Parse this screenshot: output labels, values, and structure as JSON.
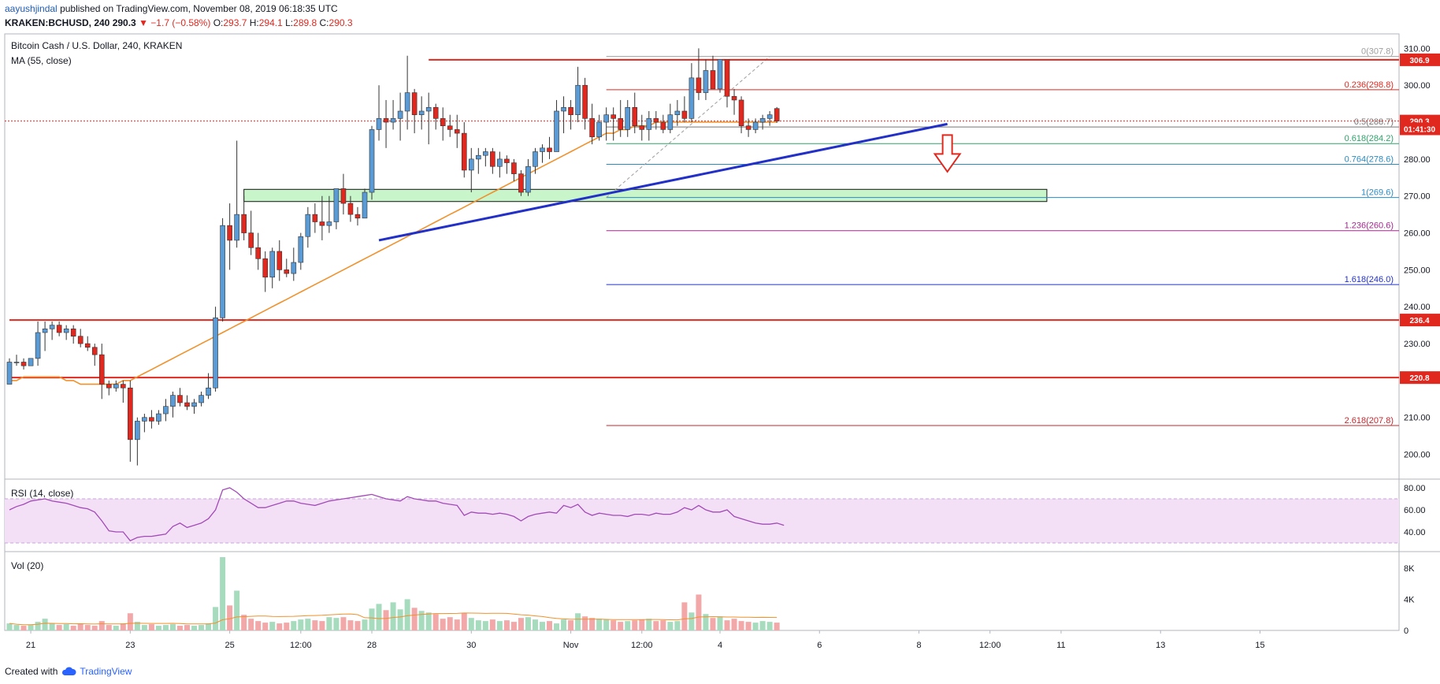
{
  "header": {
    "author": "aayushjindal",
    "published_text": "published on TradingView.com, November 08, 2019 06:18:35 UTC",
    "symbol": "KRAKEN:BCHUSD, 240",
    "last": "290.3",
    "change": "−1.7 (−0.58%)",
    "o_label": "O:",
    "o_value": "293.7",
    "h_label": "H:",
    "h_value": "294.1",
    "l_label": "L:",
    "l_value": "289.8",
    "c_label": "C:",
    "c_value": "290.3"
  },
  "legend": {
    "title": "Bitcoin Cash / U.S. Dollar, 240, KRAKEN",
    "ma": "MA (55, close)",
    "rsi": "RSI (14, close)",
    "vol": "Vol (20)"
  },
  "footer": {
    "created_with": "Created with",
    "brand": "TradingView"
  },
  "colors": {
    "bull": "#5b9bd5",
    "bear": "#e0281f",
    "ma": "#f0912c",
    "trend": "#2230c8",
    "zone": "#b6f2b8",
    "vol_up": "#a6dbbe",
    "vol_down": "#f2a8a8"
  },
  "chart_data": [
    {
      "type": "candlestick",
      "title": "Bitcoin Cash / U.S. Dollar, 240, KRAKEN",
      "ylim": [
        195,
        312
      ],
      "y_ticks": [
        200,
        210,
        220,
        230,
        240,
        250,
        260,
        270,
        280,
        290,
        300,
        310
      ],
      "x_ticks": [
        "21",
        "23",
        "25",
        "12:00",
        "28",
        "30",
        "Nov",
        "12:00",
        "4",
        "6",
        "8",
        "12:00",
        "11",
        "13",
        "15"
      ],
      "x_tick_index": [
        3,
        17,
        31,
        41,
        51,
        65,
        79,
        89,
        100,
        114,
        128,
        138,
        148,
        162,
        176
      ],
      "price_labels": [
        {
          "value": 306.9,
          "text": "306.9",
          "color": "#e0281f"
        },
        {
          "value": 290.3,
          "text": "290.3",
          "color": "#e0281f"
        },
        {
          "value": 288.2,
          "text": "01:41:30",
          "color": "#e0281f"
        },
        {
          "value": 236.4,
          "text": "236.4",
          "color": "#e0281f"
        },
        {
          "value": 220.8,
          "text": "220.8",
          "color": "#e0281f"
        }
      ],
      "horizontal_lines": [
        {
          "value": 306.9,
          "from": 59,
          "to": 180,
          "color": "#e0281f"
        },
        {
          "value": 236.4,
          "from": 0,
          "to": 180,
          "color": "#e0281f"
        },
        {
          "value": 220.8,
          "from": 0,
          "to": 180,
          "color": "#e0281f"
        }
      ],
      "fib_levels": [
        {
          "ratio": "0",
          "value": 307.8,
          "text": "0(307.8)",
          "color": "#9e9e9e"
        },
        {
          "ratio": "0.236",
          "value": 298.8,
          "text": "0.236(298.8)",
          "color": "#e0281f"
        },
        {
          "ratio": "0.5",
          "value": 288.7,
          "text": "0.5(288.7)",
          "color": "#757575"
        },
        {
          "ratio": "0.618",
          "value": 284.2,
          "text": "0.618(284.2)",
          "color": "#2ea36a"
        },
        {
          "ratio": "0.764",
          "value": 278.6,
          "text": "0.764(278.6)",
          "color": "#2b8ac2"
        },
        {
          "ratio": "1",
          "value": 269.6,
          "text": "1(269.6)",
          "color": "#2b8ac2"
        },
        {
          "ratio": "1.236",
          "value": 260.6,
          "text": "1.236(260.6)",
          "color": "#a0288c"
        },
        {
          "ratio": "1.618",
          "value": 246.0,
          "text": "1.618(246.0)",
          "color": "#2230c8"
        },
        {
          "ratio": "2.618",
          "value": 207.8,
          "text": "2.618(207.8)",
          "color": "#c2282e"
        }
      ],
      "fib_range": {
        "from": 84,
        "to": 180
      },
      "support_zone": {
        "low": 268.5,
        "high": 271.8,
        "from": 33,
        "to": 146
      },
      "trendline": {
        "start_index": 52,
        "start_value": 258.0,
        "end_index": 132,
        "end_value": 289.5
      },
      "arrow": {
        "index": 132,
        "top": 286.5,
        "bottom": 277.0
      },
      "ohlc": [
        [
          219,
          226,
          219,
          225
        ],
        [
          225,
          227,
          224,
          225
        ],
        [
          225,
          226,
          223,
          224
        ],
        [
          224,
          226,
          224,
          226
        ],
        [
          226,
          236,
          224,
          233
        ],
        [
          233,
          236,
          228,
          234
        ],
        [
          234,
          236,
          231,
          235
        ],
        [
          235,
          236,
          232,
          233
        ],
        [
          233,
          235,
          231,
          234
        ],
        [
          234,
          235,
          230,
          232
        ],
        [
          232,
          234,
          229,
          230
        ],
        [
          230,
          232,
          228,
          229
        ],
        [
          229,
          230,
          224,
          227
        ],
        [
          227,
          230,
          215,
          219
        ],
        [
          219,
          220,
          216,
          218
        ],
        [
          218,
          220,
          217,
          219
        ],
        [
          219,
          220,
          214,
          218
        ],
        [
          218,
          220,
          198,
          204
        ],
        [
          204,
          210,
          197,
          209
        ],
        [
          209,
          211,
          206,
          210
        ],
        [
          210,
          212,
          207,
          209
        ],
        [
          209,
          212,
          208,
          211
        ],
        [
          211,
          215,
          209,
          213
        ],
        [
          213,
          217,
          210,
          216
        ],
        [
          216,
          218,
          213,
          214
        ],
        [
          214,
          216,
          212,
          213
        ],
        [
          213,
          215,
          211,
          214
        ],
        [
          214,
          217,
          213,
          216
        ],
        [
          216,
          222,
          215,
          218
        ],
        [
          218,
          240,
          217,
          237
        ],
        [
          237,
          264,
          236,
          262
        ],
        [
          262,
          268,
          250,
          258
        ],
        [
          258,
          285,
          256,
          265
        ],
        [
          265,
          270,
          258,
          260
        ],
        [
          260,
          266,
          254,
          256
        ],
        [
          256,
          260,
          250,
          253
        ],
        [
          253,
          255,
          244,
          248
        ],
        [
          248,
          256,
          245,
          255
        ],
        [
          255,
          258,
          247,
          250
        ],
        [
          250,
          253,
          248,
          249
        ],
        [
          249,
          256,
          247,
          252
        ],
        [
          252,
          260,
          250,
          259
        ],
        [
          259,
          267,
          256,
          265
        ],
        [
          265,
          268,
          260,
          263
        ],
        [
          263,
          270,
          258,
          262
        ],
        [
          262,
          270,
          260,
          263
        ],
        [
          263,
          272,
          261,
          272
        ],
        [
          272,
          276,
          265,
          268
        ],
        [
          268,
          270,
          263,
          265
        ],
        [
          265,
          267,
          262,
          264
        ],
        [
          264,
          272,
          264,
          271
        ],
        [
          271,
          289,
          269,
          288
        ],
        [
          288,
          300,
          285,
          291
        ],
        [
          291,
          296,
          283,
          290
        ],
        [
          290,
          296,
          288,
          291
        ],
        [
          291,
          298,
          285,
          293
        ],
        [
          293,
          308,
          288,
          298
        ],
        [
          298,
          299,
          287,
          292
        ],
        [
          292,
          297,
          288,
          293
        ],
        [
          293,
          298,
          284,
          294
        ],
        [
          294,
          295,
          288,
          291
        ],
        [
          291,
          294,
          285,
          289
        ],
        [
          289,
          292,
          286,
          288
        ],
        [
          288,
          292,
          283,
          287
        ],
        [
          287,
          290,
          275,
          277
        ],
        [
          277,
          283,
          271,
          280
        ],
        [
          280,
          283,
          276,
          281
        ],
        [
          281,
          283,
          278,
          282
        ],
        [
          282,
          283,
          276,
          278
        ],
        [
          278,
          282,
          275,
          280
        ],
        [
          280,
          281,
          276,
          279
        ],
        [
          279,
          280,
          274,
          276
        ],
        [
          276,
          277,
          270,
          271
        ],
        [
          271,
          280,
          270,
          278
        ],
        [
          278,
          283,
          276,
          282
        ],
        [
          282,
          284,
          279,
          283
        ],
        [
          283,
          286,
          280,
          282
        ],
        [
          282,
          296,
          282,
          293
        ],
        [
          293,
          297,
          287,
          294
        ],
        [
          294,
          296,
          288,
          292
        ],
        [
          292,
          305,
          290,
          300
        ],
        [
          300,
          302,
          288,
          291
        ],
        [
          291,
          295,
          284,
          286
        ],
        [
          286,
          292,
          285,
          290
        ],
        [
          290,
          294,
          285,
          292
        ],
        [
          292,
          294,
          285,
          291
        ],
        [
          291,
          296,
          286,
          288
        ],
        [
          288,
          296,
          286,
          294
        ],
        [
          294,
          298,
          287,
          289
        ],
        [
          289,
          292,
          285,
          288
        ],
        [
          288,
          293,
          285,
          291
        ],
        [
          291,
          293,
          288,
          290
        ],
        [
          290,
          292,
          287,
          288
        ],
        [
          288,
          295,
          287,
          292
        ],
        [
          292,
          296,
          289,
          293
        ],
        [
          293,
          297,
          290,
          291
        ],
        [
          291,
          306,
          290,
          302
        ],
        [
          302,
          310,
          296,
          298
        ],
        [
          298,
          307,
          296,
          304
        ],
        [
          304,
          308,
          300,
          299
        ],
        [
          299,
          307,
          298,
          307
        ],
        [
          307,
          307,
          294,
          297
        ],
        [
          297,
          299,
          292,
          296
        ],
        [
          296,
          297,
          287,
          289
        ],
        [
          289,
          291,
          286,
          288
        ],
        [
          288,
          291,
          287,
          290
        ],
        [
          290,
          292,
          288,
          291
        ],
        [
          291,
          293,
          289,
          292
        ],
        [
          293.7,
          294.1,
          289.8,
          290.3
        ]
      ],
      "ma55": [
        220,
        220,
        221,
        221,
        221,
        221,
        221,
        221,
        220,
        220,
        219,
        219,
        219,
        219,
        219,
        219,
        220,
        220,
        221,
        222,
        223,
        224,
        225,
        226,
        227,
        228,
        229,
        230,
        231,
        232,
        233,
        234,
        235,
        236,
        237,
        238,
        239,
        240,
        241,
        242,
        243,
        244,
        245,
        246,
        247,
        248,
        249,
        250,
        251,
        252,
        253,
        254,
        255,
        256,
        257,
        258,
        259,
        260,
        261,
        262,
        263,
        264,
        265,
        266,
        267,
        268,
        269,
        270,
        271,
        272,
        273,
        274,
        275,
        276,
        277,
        278,
        279,
        280,
        281,
        282,
        283,
        284,
        285,
        286,
        287,
        287,
        288,
        288,
        289,
        289,
        289,
        290,
        290,
        290,
        290,
        290,
        290,
        290,
        290,
        290,
        290,
        290,
        290,
        290,
        290,
        290,
        290,
        290,
        290
      ]
    },
    {
      "type": "line",
      "title": "RSI (14, close)",
      "ylim": [
        25,
        85
      ],
      "y_ticks": [
        40,
        60,
        80
      ],
      "bands": [
        30,
        70
      ],
      "values": [
        60,
        63,
        65,
        68,
        69,
        70,
        68,
        67,
        66,
        64,
        62,
        61,
        58,
        50,
        41,
        40,
        40,
        32,
        35,
        36,
        36,
        37,
        38,
        45,
        48,
        44,
        46,
        48,
        52,
        60,
        78,
        80,
        76,
        70,
        66,
        62,
        62,
        64,
        66,
        68,
        68,
        66,
        65,
        64,
        66,
        68,
        69,
        70,
        71,
        72,
        73,
        74,
        72,
        70,
        69,
        68,
        72,
        70,
        69,
        68,
        68,
        66,
        65,
        64,
        55,
        58,
        57,
        57,
        56,
        57,
        56,
        54,
        50,
        54,
        56,
        57,
        58,
        57,
        64,
        62,
        65,
        58,
        55,
        57,
        56,
        55,
        55,
        54,
        56,
        56,
        55,
        57,
        56,
        56,
        58,
        62,
        60,
        64,
        60,
        58,
        58,
        60,
        54,
        52,
        50,
        48,
        47,
        47,
        48,
        46
      ]
    },
    {
      "type": "bar",
      "title": "Vol (20)",
      "ylim": [
        0,
        9500
      ],
      "y_ticks": [
        "0",
        "4K",
        "8K"
      ],
      "y_tick_values": [
        0,
        4000,
        8000
      ],
      "values": [
        900,
        700,
        600,
        700,
        1100,
        1500,
        900,
        700,
        800,
        600,
        900,
        700,
        600,
        1200,
        700,
        600,
        900,
        2200,
        1100,
        700,
        800,
        600,
        700,
        800,
        600,
        700,
        600,
        700,
        900,
        3000,
        9400,
        3200,
        5100,
        2000,
        1500,
        1200,
        1000,
        1100,
        900,
        1000,
        1200,
        1400,
        1500,
        1300,
        1200,
        1700,
        1600,
        1700,
        1300,
        1200,
        1400,
        2800,
        3400,
        2600,
        3600,
        2700,
        4000,
        2900,
        2500,
        2300,
        2100,
        1500,
        1700,
        1400,
        2200,
        1600,
        1300,
        1200,
        1400,
        1200,
        1300,
        1100,
        1600,
        1700,
        1400,
        1100,
        1200,
        900,
        1400,
        1300,
        2200,
        1800,
        1600,
        1500,
        1400,
        1300,
        1100,
        1200,
        1300,
        1400,
        1500,
        1200,
        1300,
        1100,
        1200,
        3600,
        2300,
        4600,
        2100,
        1600,
        1800,
        1300,
        1500,
        1200,
        1100,
        1000,
        1200,
        1100,
        1000
      ]
    }
  ]
}
